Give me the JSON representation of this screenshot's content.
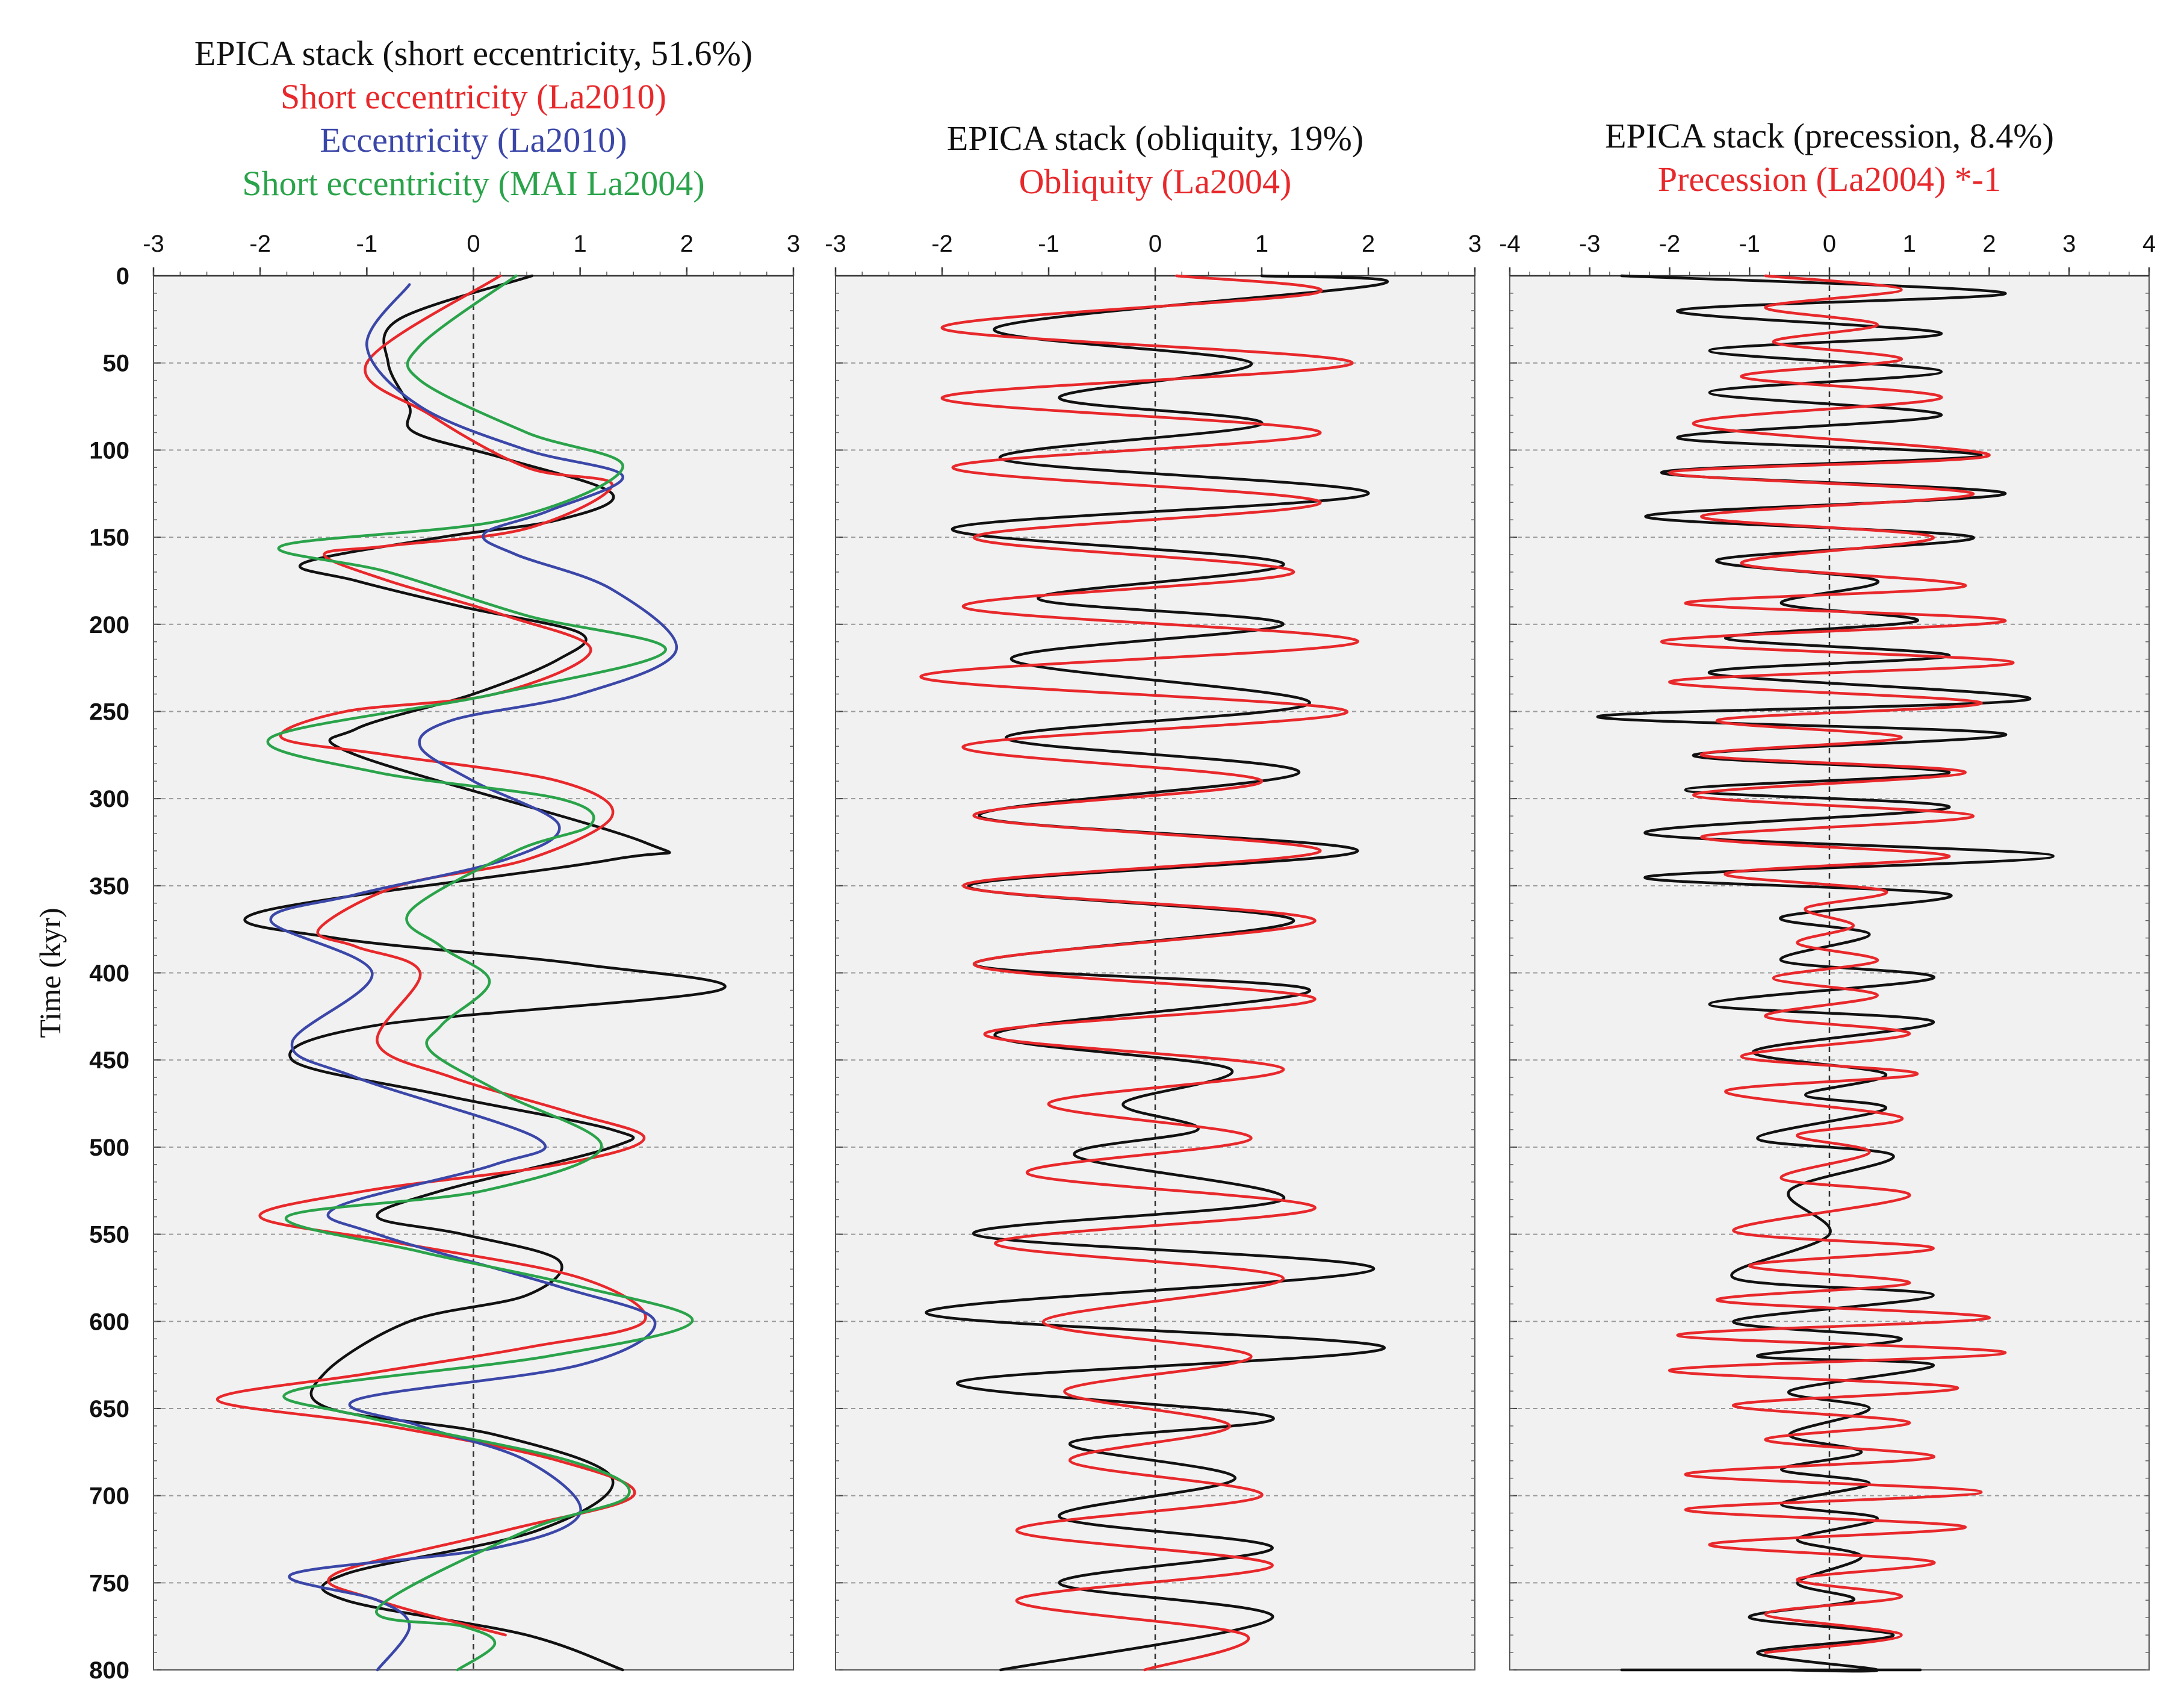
{
  "chart_data": [
    {
      "type": "line",
      "titles": [
        {
          "text": "EPICA stack (short eccentricity, 51.6%)",
          "color": "#111111"
        },
        {
          "text": "Short eccentricity (La2010)",
          "color": "#e8282b"
        },
        {
          "text": "Eccentricity (La2010)",
          "color": "#3b47a8"
        },
        {
          "text": "Short eccentricity (MAI La2004)",
          "color": "#2aa34a"
        }
      ],
      "xlim": [
        -3,
        3
      ],
      "xticks": [
        "-3",
        "-2",
        "-1",
        "0",
        "1",
        "2",
        "3"
      ],
      "ylabel": "Time (kyr)",
      "ylim": [
        0,
        800
      ],
      "yticks": [
        "0",
        "50",
        "100",
        "150",
        "200",
        "250",
        "300",
        "350",
        "400",
        "450",
        "500",
        "550",
        "600",
        "650",
        "700",
        "750",
        "800"
      ],
      "series": [
        {
          "name": "EPICA stack (short eccentricity, 51.6%)",
          "color": "#111111",
          "x": [
            0.55,
            -0.7,
            -0.8,
            -0.6,
            -0.55,
            0.3,
            1.3,
            0.8,
            -0.3,
            -1.6,
            -1.1,
            -0.1,
            1.0,
            0.8,
            0.0,
            -1.1,
            -1.1,
            1.6,
            1.3,
            -2.0,
            -1.3,
            1.0,
            2.3,
            -0.9,
            -1.7,
            -0.3,
            1.3,
            1.3,
            -0.3,
            -0.9,
            -0.1,
            0.8,
            0.5,
            -0.6,
            -1.4,
            -1.35,
            0.2,
            1.3,
            0.6,
            -1.2,
            -1.2,
            0.5,
            1.4
          ],
          "y": [
            0,
            25,
            50,
            75,
            90,
            105,
            125,
            140,
            150,
            165,
            175,
            190,
            205,
            220,
            240,
            260,
            275,
            325,
            335,
            365,
            380,
            395,
            410,
            430,
            450,
            470,
            490,
            500,
            525,
            540,
            550,
            565,
            585,
            600,
            630,
            650,
            665,
            690,
            720,
            745,
            760,
            780,
            800
          ]
        },
        {
          "name": "Short eccentricity (La2010)",
          "color": "#e8282b",
          "x": [
            0.25,
            -1.0,
            -0.4,
            0.5,
            1.3,
            0.5,
            -0.8,
            -1.4,
            -0.8,
            0.3,
            1.1,
            0.2,
            -1.2,
            -1.8,
            -0.8,
            0.8,
            1.3,
            0.5,
            -0.7,
            -1.45,
            -1.1,
            -0.5,
            -0.9,
            -0.2,
            0.9,
            1.6,
            0.8,
            -1.0,
            -2.0,
            -0.7,
            1.0,
            1.6,
            0.5,
            -1.0,
            -2.4,
            -0.8,
            0.8,
            1.5,
            0.3,
            -1.3,
            -0.9,
            0.3
          ],
          "y": [
            0,
            50,
            80,
            110,
            120,
            145,
            155,
            160,
            175,
            195,
            215,
            240,
            250,
            265,
            275,
            290,
            310,
            335,
            350,
            375,
            385,
            400,
            440,
            460,
            480,
            495,
            510,
            525,
            540,
            555,
            575,
            600,
            615,
            630,
            645,
            660,
            680,
            700,
            720,
            745,
            760,
            780
          ]
        },
        {
          "name": "Eccentricity (La2010)",
          "color": "#3b47a8",
          "x": [
            -0.6,
            -1.0,
            -0.5,
            0.5,
            1.4,
            0.7,
            0.1,
            0.4,
            1.3,
            1.9,
            1.0,
            -0.2,
            -0.5,
            0.0,
            0.8,
            0.3,
            -1.1,
            -1.9,
            -0.95,
            -1.7,
            -1.1,
            0.6,
            0.2,
            -1.3,
            -0.9,
            0.8,
            1.7,
            1.0,
            -1.1,
            -0.5,
            0.5,
            1.0,
            0.2,
            -1.7,
            -0.9,
            -0.6,
            -0.9
          ],
          "y": [
            5,
            40,
            75,
            100,
            115,
            135,
            148,
            160,
            180,
            215,
            240,
            255,
            270,
            290,
            315,
            335,
            355,
            370,
            400,
            440,
            460,
            495,
            510,
            535,
            550,
            580,
            600,
            625,
            645,
            660,
            680,
            710,
            730,
            745,
            760,
            775,
            800
          ]
        },
        {
          "name": "Short eccentricity (MAI La2004)",
          "color": "#2aa34a",
          "x": [
            0.4,
            -0.5,
            -0.5,
            0.5,
            1.4,
            0.3,
            -1.8,
            -0.8,
            0.5,
            1.8,
            0.2,
            -1.9,
            -0.9,
            0.8,
            1.1,
            0.4,
            -0.6,
            -0.3,
            0.15,
            -0.3,
            -0.4,
            0.3,
            1.2,
            0.1,
            -1.75,
            -0.5,
            1.0,
            2.05,
            0.7,
            -1.7,
            -1.0,
            0.9,
            1.45,
            0.5,
            -0.9,
            -0.1,
            0.2,
            -0.15
          ],
          "y": [
            0,
            40,
            60,
            90,
            110,
            140,
            155,
            170,
            195,
            215,
            240,
            265,
            285,
            300,
            315,
            330,
            365,
            385,
            405,
            430,
            445,
            470,
            500,
            525,
            540,
            560,
            580,
            600,
            620,
            640,
            655,
            680,
            700,
            720,
            765,
            775,
            785,
            800
          ]
        }
      ]
    },
    {
      "type": "line",
      "titles": [
        {
          "text": "EPICA stack (obliquity, 19%)",
          "color": "#111111"
        },
        {
          "text": "Obliquity (La2004)",
          "color": "#e8282b"
        }
      ],
      "xlim": [
        -3,
        3
      ],
      "xticks": [
        "-3",
        "-2",
        "-1",
        "0",
        "1",
        "2",
        "3"
      ],
      "ylim": [
        0,
        800
      ],
      "series": [
        {
          "name": "EPICA stack (obliquity, 19%)",
          "color": "#111111",
          "x": [
            1.0,
            2.1,
            -1.5,
            0.9,
            -0.9,
            1.0,
            -1.45,
            2.0,
            -1.9,
            1.2,
            -1.1,
            1.2,
            -1.35,
            1.45,
            -1.4,
            1.35,
            -1.65,
            1.9,
            -1.75,
            1.3,
            -1.7,
            1.45,
            -1.5,
            0.7,
            -0.3,
            0.4,
            -0.75,
            1.2,
            -1.7,
            2.05,
            -2.15,
            2.15,
            -1.85,
            1.1,
            -0.8,
            0.75,
            -0.9,
            1.1,
            -0.9,
            1.1,
            -1.45
          ],
          "y": [
            0,
            5,
            30,
            50,
            70,
            85,
            105,
            125,
            145,
            165,
            185,
            200,
            220,
            245,
            265,
            285,
            310,
            330,
            350,
            370,
            395,
            410,
            435,
            455,
            475,
            490,
            505,
            530,
            550,
            570,
            595,
            615,
            635,
            655,
            670,
            690,
            712,
            730,
            750,
            770,
            800
          ]
        },
        {
          "name": "Obliquity (La2004)",
          "color": "#e8282b",
          "x": [
            0.2,
            1.5,
            -2.0,
            1.85,
            -2.0,
            1.55,
            -1.9,
            1.55,
            -1.7,
            1.3,
            -1.8,
            1.9,
            -2.2,
            1.8,
            -1.8,
            1.0,
            -1.7,
            1.55,
            -1.8,
            1.5,
            -1.7,
            1.5,
            -1.6,
            1.2,
            -1.0,
            0.9,
            -1.2,
            1.5,
            -1.5,
            1.2,
            -1.05,
            0.9,
            -0.85,
            0.7,
            -0.8,
            1.0,
            -1.3,
            1.1,
            -1.3,
            0.85,
            -0.1
          ],
          "y": [
            0,
            10,
            30,
            50,
            70,
            90,
            110,
            130,
            150,
            170,
            190,
            210,
            230,
            250,
            270,
            290,
            310,
            330,
            350,
            370,
            395,
            415,
            435,
            455,
            475,
            495,
            515,
            535,
            555,
            575,
            600,
            620,
            640,
            660,
            680,
            700,
            720,
            740,
            760,
            780,
            800
          ]
        }
      ]
    },
    {
      "type": "line",
      "titles": [
        {
          "text": "EPICA stack (precession, 8.4%)",
          "color": "#111111"
        },
        {
          "text": "Precession (La2004) *-1",
          "color": "#e8282b"
        }
      ],
      "xlim": [
        -4,
        4
      ],
      "xticks": [
        "-4",
        "-3",
        "-2",
        "-1",
        "0",
        "1",
        "2",
        "3",
        "4"
      ],
      "ylim": [
        0,
        800
      ],
      "series": [
        {
          "name": "EPICA stack (precession, 8.4%)",
          "color": "#111111",
          "x": [
            -2.6,
            2.2,
            -1.9,
            1.4,
            -1.5,
            1.4,
            -1.5,
            1.4,
            -1.9,
            1.9,
            -2.1,
            2.2,
            -2.3,
            1.8,
            -1.4,
            0.6,
            -0.6,
            1.1,
            -1.3,
            1.5,
            -1.5,
            2.5,
            -2.9,
            2.2,
            -1.7,
            1.5,
            -1.8,
            1.5,
            -2.3,
            2.8,
            -2.3,
            1.5,
            -0.6,
            0.5,
            -0.6,
            1.3,
            -1.5,
            1.3,
            -0.95,
            0.7,
            -0.3,
            0.7,
            -0.9,
            0.8,
            -0.5,
            0.0,
            -1.2,
            1.3,
            -1.2,
            0.9,
            -0.9,
            1.3,
            -0.5,
            0.5,
            -0.5,
            0.4,
            -0.6,
            0.5,
            -0.6,
            0.6,
            -0.4,
            0.4,
            -0.4,
            0.3,
            -1.0,
            0.8,
            -0.9,
            0.6,
            -0.5,
            0.7,
            -0.6,
            1.1,
            -2.6
          ],
          "y": [
            0,
            10,
            20,
            33,
            43,
            55,
            67,
            80,
            93,
            103,
            113,
            125,
            138,
            150,
            163,
            175,
            188,
            198,
            208,
            218,
            228,
            243,
            253,
            263,
            275,
            285,
            295,
            305,
            320,
            333,
            345,
            355,
            368,
            378,
            393,
            403,
            418,
            428,
            445,
            458,
            470,
            478,
            495,
            505,
            525,
            550,
            575,
            585,
            600,
            610,
            620,
            625,
            640,
            650,
            665,
            675,
            685,
            693,
            705,
            713,
            725,
            735,
            750,
            760,
            770,
            780,
            790,
            800,
            800,
            800,
            800,
            800,
            800
          ]
        },
        {
          "name": "Precession (La2004) *-1",
          "color": "#e8282b",
          "x": [
            -0.8,
            0.9,
            -0.8,
            0.6,
            -0.7,
            0.9,
            -1.1,
            1.4,
            -1.7,
            2.0,
            -2.0,
            1.8,
            -1.6,
            1.3,
            -1.1,
            1.7,
            -1.8,
            2.2,
            -2.1,
            2.3,
            -2.0,
            1.9,
            -1.4,
            0.9,
            -1.6,
            1.7,
            -1.7,
            1.8,
            -1.6,
            1.5,
            -1.3,
            0.7,
            -0.3,
            0.3,
            -0.4,
            0.6,
            -0.7,
            0.6,
            -0.8,
            1.0,
            -1.1,
            1.1,
            -1.3,
            0.9,
            -0.4,
            0.5,
            -0.6,
            1.0,
            -1.2,
            1.3,
            -1.0,
            1.0,
            -1.4,
            2.0,
            -1.9,
            2.2,
            -2.0,
            1.6,
            -1.2,
            1.0,
            -0.8,
            1.3,
            -1.8,
            1.9,
            -1.8,
            1.7,
            -1.5,
            1.3,
            -0.4,
            0.9,
            -0.8,
            0.9,
            -0.8
          ],
          "y": [
            0,
            8,
            18,
            28,
            38,
            48,
            58,
            70,
            85,
            103,
            113,
            125,
            138,
            150,
            165,
            178,
            188,
            198,
            210,
            222,
            233,
            245,
            255,
            265,
            275,
            285,
            298,
            310,
            322,
            333,
            343,
            353,
            363,
            373,
            383,
            393,
            403,
            413,
            425,
            435,
            448,
            458,
            468,
            483,
            493,
            503,
            518,
            528,
            548,
            558,
            568,
            578,
            588,
            598,
            608,
            618,
            628,
            638,
            648,
            658,
            668,
            678,
            688,
            698,
            708,
            718,
            728,
            738,
            748,
            758,
            768,
            780,
            790
          ]
        }
      ]
    }
  ]
}
